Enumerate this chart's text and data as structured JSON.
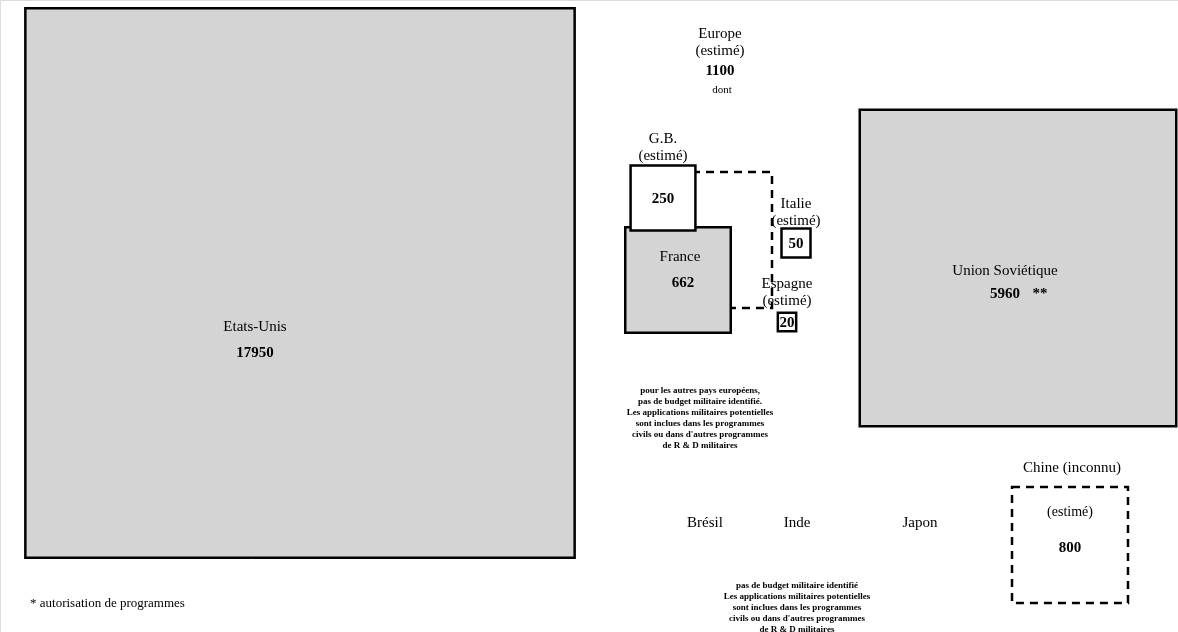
{
  "chart_data": {
    "type": "other",
    "categories": [
      "Etats-Unis",
      "Union Soviétique",
      "France",
      "G.B.\n(estimé)",
      "Italie\n(estimé)",
      "Espagne\n(estimé)",
      "Europe\n(estimé)",
      "Chine  (inconnu)",
      "Brésil",
      "Inde",
      "Japon"
    ],
    "series": [
      {
        "color": "#000000",
        "line_style": "solid",
        "values": [
          17950,
          5960,
          662,
          250,
          50,
          20,
          null,
          null,
          null,
          null,
          null
        ]
      },
      {
        "color": "#000000",
        "line_style": "dashed",
        "values": [
          null,
          null,
          null,
          null,
          null,
          null,
          1100,
          800,
          null,
          null,
          null
        ]
      }
    ],
    "colors": [
      "#d4d4d4",
      "#d4d4d4",
      "#d4d4d4",
      "#ffffff",
      "#ffffff",
      "#ffffff",
      null,
      null,
      null,
      null,
      null
    ],
    "data_labels": true,
    "annotations": [
      "**",
      "dont",
      "(estimé)",
      "pour les autres pays européens,\npas de budget militaire identifié.\nLes applications militaires potentielles\nsont inclues dans les programmes\ncivils ou dans d'autres programmes\nde R & D militaires",
      "pas de budget militaire identifié\nLes applications militaires potentielles\nsont inclues dans les programmes\ncivils ou dans d'autres programmes\nde R & D militaires",
      "*   autorisation de programmes"
    ]
  }
}
